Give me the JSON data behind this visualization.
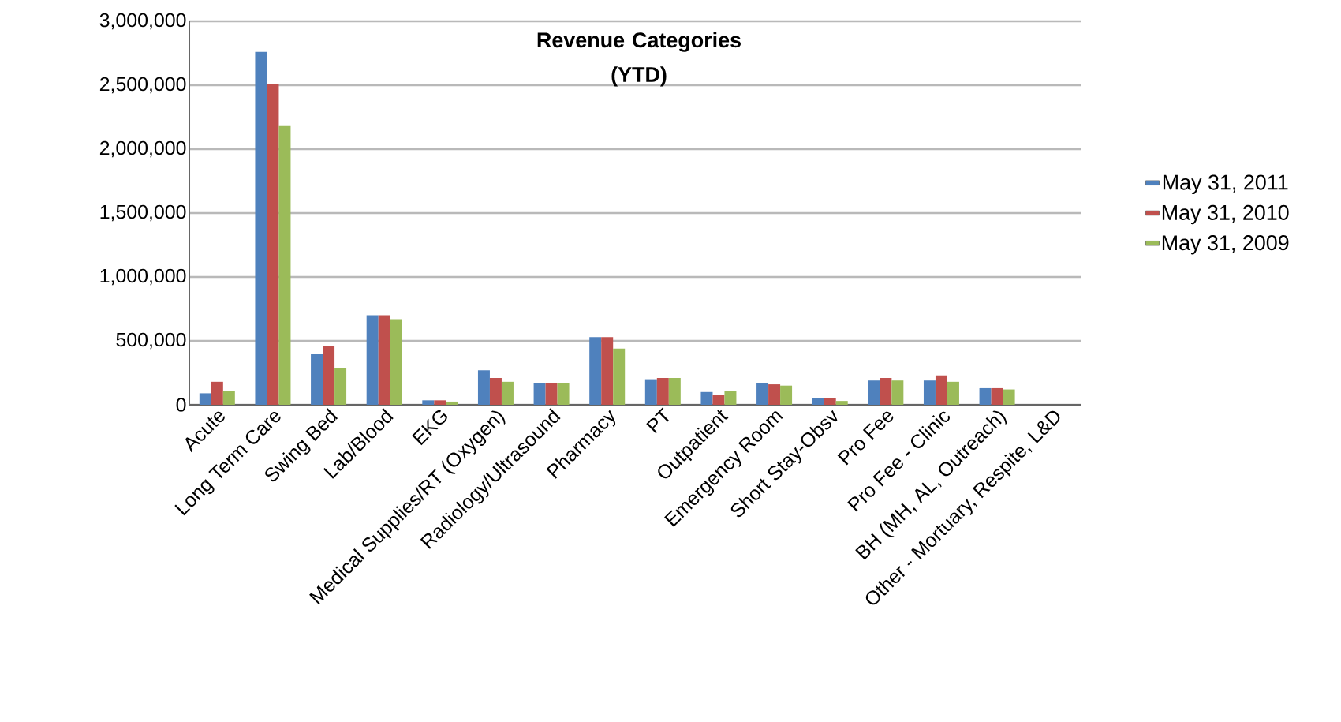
{
  "chart_data": {
    "type": "bar",
    "title": "Revenue Categories\n(YTD)",
    "categories": [
      "Acute",
      "Long Term Care",
      "Swing Bed",
      "Lab/Blood",
      "EKG",
      "Medical Supplies/RT (Oxygen)",
      "Radiology/Ultrasound",
      "Pharmacy",
      "PT",
      "Outpatient",
      "Emergency Room",
      "Short Stay-Obsv",
      "Pro Fee",
      "Pro Fee - Clinic",
      "BH (MH, AL, Outreach)",
      "Other - Mortuary, Respite, L&D"
    ],
    "series": [
      {
        "name": "May 31, 2011",
        "color": "#4f81bd",
        "values": [
          90000,
          2760000,
          400000,
          700000,
          35000,
          270000,
          170000,
          530000,
          200000,
          100000,
          170000,
          50000,
          190000,
          190000,
          130000,
          0
        ]
      },
      {
        "name": "May 31, 2010",
        "color": "#c0504d",
        "values": [
          180000,
          2510000,
          460000,
          700000,
          35000,
          210000,
          170000,
          530000,
          210000,
          80000,
          160000,
          50000,
          210000,
          230000,
          130000,
          0
        ]
      },
      {
        "name": "May 31, 2009",
        "color": "#9bbb59",
        "values": [
          110000,
          2180000,
          290000,
          670000,
          25000,
          180000,
          170000,
          440000,
          210000,
          110000,
          150000,
          30000,
          190000,
          180000,
          120000,
          0
        ]
      }
    ],
    "ylim": [
      0,
      3000000
    ],
    "yticks": [
      {
        "value": 0,
        "label": "0"
      },
      {
        "value": 500000,
        "label": "500,000"
      },
      {
        "value": 1000000,
        "label": "1,000,000"
      },
      {
        "value": 1500000,
        "label": "1,500,000"
      },
      {
        "value": 2000000,
        "label": "2,000,000"
      },
      {
        "value": 2500000,
        "label": "2,500,000"
      },
      {
        "value": 3000000,
        "label": "3,000,000"
      }
    ],
    "grid": "y",
    "legend": "right"
  }
}
